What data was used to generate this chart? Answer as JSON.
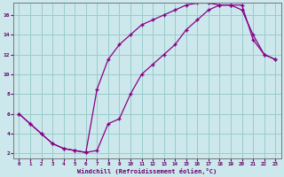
{
  "xlabel": "Windchill (Refroidissement éolien,°C)",
  "bg_color": "#cce8ec",
  "line_color": "#880088",
  "grid_color": "#99cccc",
  "xlim": [
    -0.5,
    23.5
  ],
  "ylim": [
    1.5,
    17.2
  ],
  "xticks": [
    0,
    1,
    2,
    3,
    4,
    5,
    6,
    7,
    8,
    9,
    10,
    11,
    12,
    13,
    14,
    15,
    16,
    17,
    18,
    19,
    20,
    21,
    22,
    23
  ],
  "yticks": [
    2,
    4,
    6,
    8,
    10,
    12,
    14,
    16
  ],
  "line1_x": [
    0,
    1,
    2,
    3,
    4,
    5,
    6,
    7,
    8,
    9,
    10,
    11,
    12,
    13,
    14,
    15,
    16,
    17,
    18,
    19,
    20,
    21,
    22,
    23
  ],
  "line1_y": [
    6,
    5,
    4,
    3,
    2.5,
    2.3,
    2.1,
    2.3,
    5,
    5.5,
    8,
    10,
    11,
    12,
    13,
    14.5,
    15.5,
    16.5,
    17,
    17,
    17,
    13.5,
    12,
    11.5
  ],
  "line2_x": [
    0,
    1,
    2,
    3,
    4,
    5,
    6,
    7,
    8,
    9,
    10,
    11,
    12,
    13,
    14,
    15,
    16,
    17,
    18,
    19,
    20,
    21,
    22,
    23
  ],
  "line2_y": [
    6,
    5,
    4,
    3,
    2.5,
    2.3,
    2.1,
    8.5,
    11.5,
    13,
    14,
    15,
    15.5,
    16,
    16.5,
    17,
    17.2,
    17.2,
    17,
    17,
    16.5,
    14,
    12,
    11.5
  ]
}
